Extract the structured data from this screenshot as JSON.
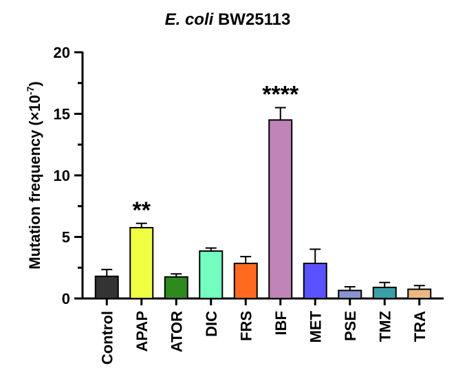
{
  "chart_data": {
    "type": "bar",
    "title_italic": "E. coli",
    "title_rest": " BW25113",
    "ylabel_main": "Mutation frequency (×10",
    "ylabel_exp": "-7",
    "ylabel_close": ")",
    "xlabel": "",
    "ylim": [
      0,
      20
    ],
    "yticks": [
      0,
      5,
      10,
      15,
      20
    ],
    "categories": [
      "Control",
      "APAP",
      "ATOR",
      "DIC",
      "FRS",
      "IBF",
      "MET",
      "PSE",
      "TMZ",
      "TRA"
    ],
    "values": [
      1.8,
      5.75,
      1.75,
      3.85,
      2.85,
      14.5,
      2.85,
      0.65,
      0.9,
      0.75
    ],
    "errors": [
      0.55,
      0.35,
      0.25,
      0.25,
      0.55,
      1.0,
      1.15,
      0.3,
      0.4,
      0.3
    ],
    "colors": [
      "#333333",
      "#f0ff42",
      "#2f8a1e",
      "#74ffc0",
      "#ff6a1f",
      "#c084b8",
      "#5a52ff",
      "#8a93d0",
      "#3aa0a8",
      "#eab883"
    ],
    "significance": [
      {
        "category": "APAP",
        "label": "**"
      },
      {
        "category": "IBF",
        "label": "****"
      }
    ],
    "grid": false,
    "legend": "none"
  }
}
